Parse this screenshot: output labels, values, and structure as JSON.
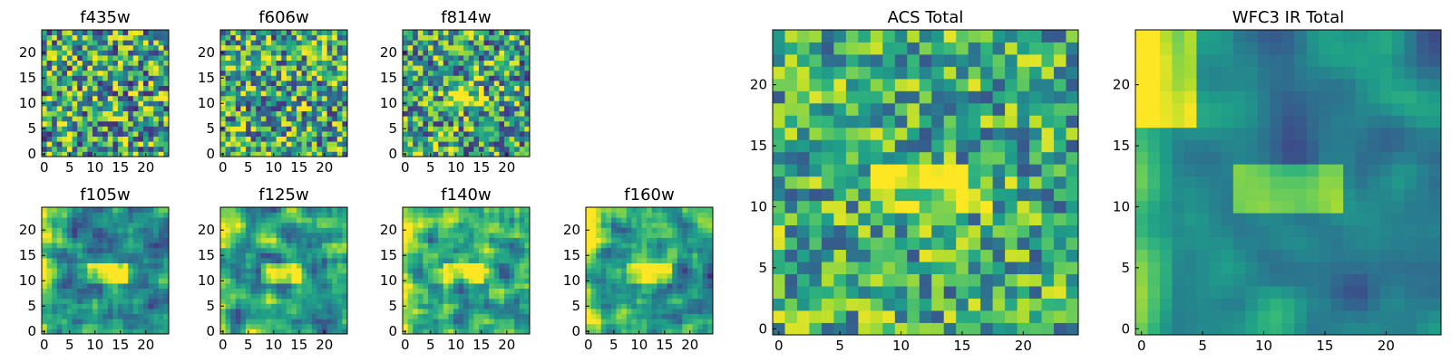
{
  "figure": {
    "type": "heatmap-grid",
    "colormap": "viridis"
  },
  "chart_data": [
    {
      "type": "heatmap",
      "title": "f435w",
      "grid": [
        25,
        25
      ],
      "xticks": [
        "0",
        "5",
        "10",
        "15",
        "20"
      ],
      "yticks": [
        "0",
        "5",
        "10",
        "15",
        "20"
      ],
      "xlim": [
        0,
        24
      ],
      "ylim": [
        0,
        24
      ],
      "pattern": {
        "noise": 0.95,
        "bright_rect": null,
        "bright_left": 0,
        "bright_topleft": 0,
        "base": 0.58
      }
    },
    {
      "type": "heatmap",
      "title": "f606w",
      "grid": [
        25,
        25
      ],
      "xticks": [
        "0",
        "5",
        "10",
        "15",
        "20"
      ],
      "yticks": [
        "0",
        "5",
        "10",
        "15",
        "20"
      ],
      "xlim": [
        0,
        24
      ],
      "ylim": [
        0,
        24
      ],
      "pattern": {
        "noise": 0.9,
        "bright_rect": null,
        "bright_left": 0,
        "bright_topleft": 0,
        "base": 0.6
      }
    },
    {
      "type": "heatmap",
      "title": "f814w",
      "grid": [
        25,
        25
      ],
      "xticks": [
        "0",
        "5",
        "10",
        "15",
        "20"
      ],
      "yticks": [
        "0",
        "5",
        "10",
        "15",
        "20"
      ],
      "xlim": [
        0,
        24
      ],
      "ylim": [
        0,
        24
      ],
      "pattern": {
        "noise": 0.9,
        "bright_rect": [
          9,
          15,
          10,
          13
        ],
        "bright_left": 0,
        "bright_topleft": 0,
        "base": 0.58
      }
    },
    {
      "type": "heatmap",
      "title": "f105w",
      "grid": [
        25,
        25
      ],
      "xticks": [
        "0",
        "5",
        "10",
        "15",
        "20"
      ],
      "yticks": [
        "0",
        "5",
        "10",
        "15",
        "20"
      ],
      "xlim": [
        0,
        24
      ],
      "ylim": [
        0,
        24
      ],
      "pattern": {
        "noise": 0.75,
        "bright_rect": [
          9,
          16,
          10,
          13
        ],
        "bright_left": 0.25,
        "bright_topleft": 0.2,
        "base": 0.55
      }
    },
    {
      "type": "heatmap",
      "title": "f125w",
      "grid": [
        25,
        25
      ],
      "xticks": [
        "0",
        "5",
        "10",
        "15",
        "20"
      ],
      "yticks": [
        "0",
        "5",
        "10",
        "15",
        "20"
      ],
      "xlim": [
        0,
        24
      ],
      "ylim": [
        0,
        24
      ],
      "pattern": {
        "noise": 0.8,
        "bright_rect": [
          8,
          15,
          10,
          13
        ],
        "bright_left": 0.15,
        "bright_topleft": 0.15,
        "base": 0.6
      }
    },
    {
      "type": "heatmap",
      "title": "f140w",
      "grid": [
        25,
        25
      ],
      "xticks": [
        "0",
        "5",
        "10",
        "15",
        "20"
      ],
      "yticks": [
        "0",
        "5",
        "10",
        "15",
        "20"
      ],
      "xlim": [
        0,
        24
      ],
      "ylim": [
        0,
        24
      ],
      "pattern": {
        "noise": 0.75,
        "bright_rect": [
          8,
          15,
          10,
          13
        ],
        "bright_left": 0.2,
        "bright_topleft": 0.2,
        "base": 0.6
      }
    },
    {
      "type": "heatmap",
      "title": "f160w",
      "grid": [
        25,
        25
      ],
      "xticks": [
        "0",
        "5",
        "10",
        "15",
        "20"
      ],
      "yticks": [
        "0",
        "5",
        "10",
        "15",
        "20"
      ],
      "xlim": [
        0,
        24
      ],
      "ylim": [
        0,
        24
      ],
      "pattern": {
        "noise": 0.75,
        "bright_rect": [
          8,
          16,
          10,
          13
        ],
        "bright_left": 0.3,
        "bright_topleft": 0.25,
        "base": 0.5
      }
    },
    {
      "type": "heatmap",
      "title": "ACS Total",
      "grid": [
        25,
        25
      ],
      "xticks": [
        "0",
        "5",
        "10",
        "15",
        "20"
      ],
      "yticks": [
        "0",
        "5",
        "10",
        "15",
        "20"
      ],
      "xlim": [
        0,
        24
      ],
      "ylim": [
        0,
        24
      ],
      "pattern": {
        "noise": 0.7,
        "bright_rect": [
          8,
          17,
          10,
          13
        ],
        "bright_left": 0,
        "bright_topleft": 0,
        "base": 0.62
      }
    },
    {
      "type": "heatmap",
      "title": "WFC3 IR Total",
      "grid": [
        25,
        25
      ],
      "xticks": [
        "0",
        "5",
        "10",
        "15",
        "20"
      ],
      "yticks": [
        "0",
        "5",
        "10",
        "15",
        "20"
      ],
      "xlim": [
        0,
        24
      ],
      "ylim": [
        0,
        24
      ],
      "pattern": {
        "noise": 0.45,
        "bright_rect": [
          8,
          16,
          10,
          13
        ],
        "bright_left": 0.35,
        "bright_topleft": 0.4,
        "base": 0.45
      }
    }
  ]
}
